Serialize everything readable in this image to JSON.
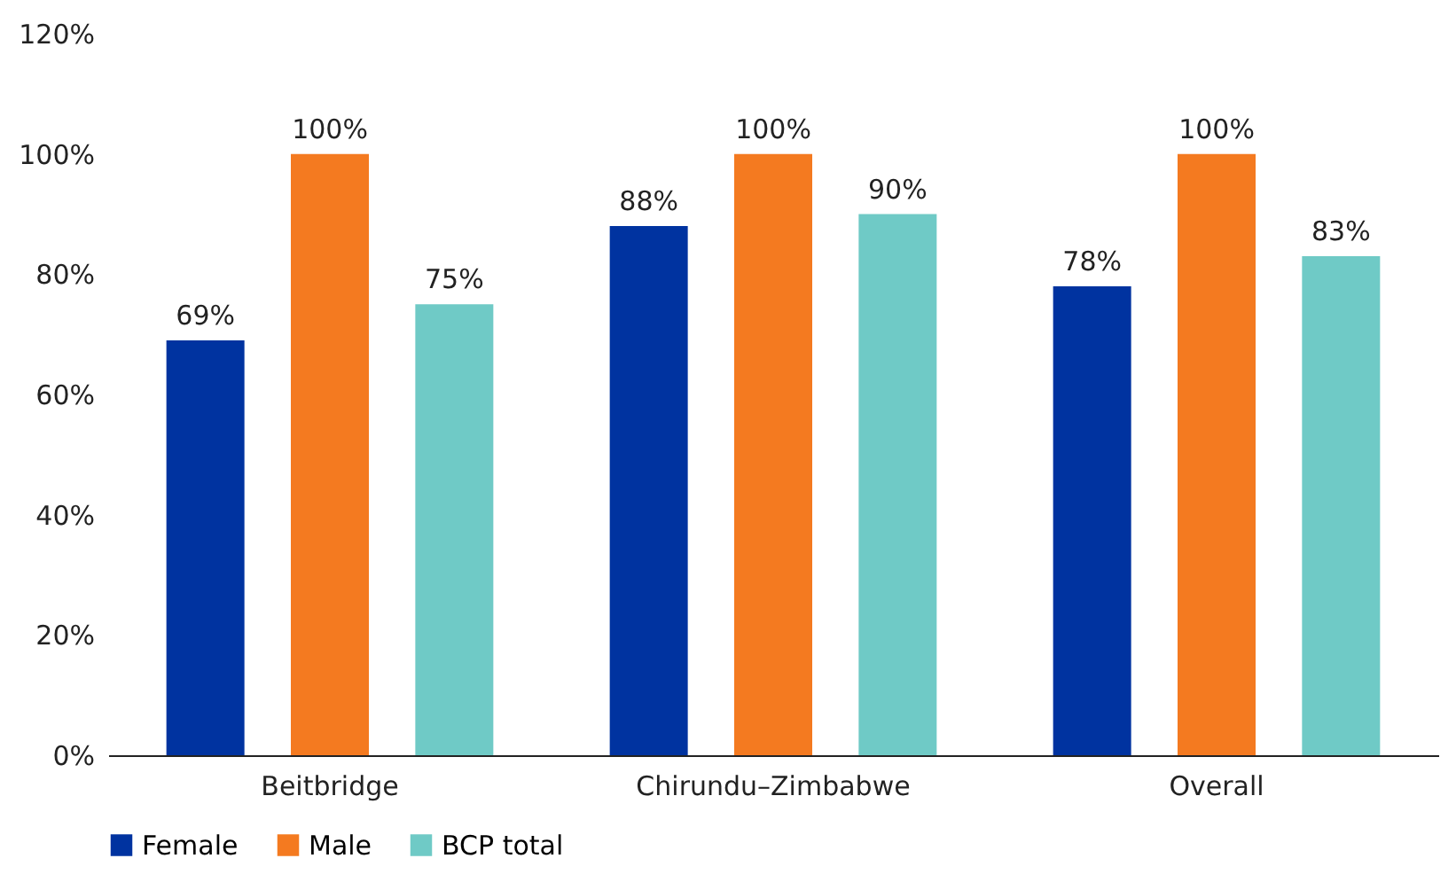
{
  "chart_data": {
    "type": "bar",
    "categories": [
      "Beitbridge",
      "Chirundu–Zimbabwe",
      "Overall"
    ],
    "series": [
      {
        "name": "Female",
        "color": "#0033a0",
        "values": [
          69,
          88,
          78
        ],
        "value_labels": [
          "69%",
          "88%",
          "78%"
        ]
      },
      {
        "name": "Male",
        "color": "#f47a20",
        "values": [
          100,
          100,
          100
        ],
        "value_labels": [
          "100%",
          "100%",
          "100%"
        ]
      },
      {
        "name": "BCP total",
        "color": "#6fcac6",
        "values": [
          75,
          90,
          83
        ],
        "value_labels": [
          "75%",
          "90%",
          "83%"
        ]
      }
    ],
    "ylim": [
      0,
      120
    ],
    "yticks": [
      {
        "value": 0,
        "label": "0%"
      },
      {
        "value": 20,
        "label": "20%"
      },
      {
        "value": 40,
        "label": "40%"
      },
      {
        "value": 60,
        "label": "60%"
      },
      {
        "value": 80,
        "label": "80%"
      },
      {
        "value": 100,
        "label": "100%"
      },
      {
        "value": 120,
        "label": "120%"
      }
    ],
    "grid": false,
    "legend": "bottom"
  }
}
